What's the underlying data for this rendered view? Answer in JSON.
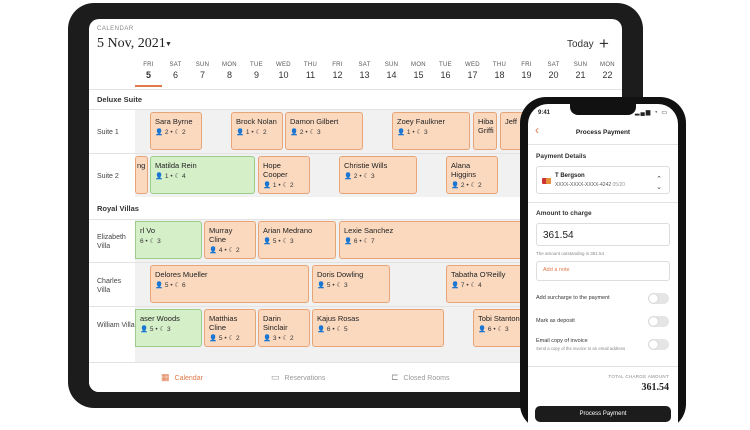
{
  "tablet": {
    "calendar_label": "CALENDAR",
    "date": "5 Nov, 2021",
    "today_label": "Today",
    "plus_icon": "+",
    "days": [
      {
        "dow": "FRI",
        "num": "5"
      },
      {
        "dow": "SAT",
        "num": "6"
      },
      {
        "dow": "SUN",
        "num": "7"
      },
      {
        "dow": "MON",
        "num": "8"
      },
      {
        "dow": "TUE",
        "num": "9"
      },
      {
        "dow": "WED",
        "num": "10"
      },
      {
        "dow": "THU",
        "num": "11"
      },
      {
        "dow": "FRI",
        "num": "12"
      },
      {
        "dow": "SAT",
        "num": "13"
      },
      {
        "dow": "SUN",
        "num": "14"
      },
      {
        "dow": "MON",
        "num": "15"
      },
      {
        "dow": "TUE",
        "num": "16"
      },
      {
        "dow": "WED",
        "num": "17"
      },
      {
        "dow": "THU",
        "num": "18"
      },
      {
        "dow": "FRI",
        "num": "19"
      },
      {
        "dow": "SAT",
        "num": "20"
      },
      {
        "dow": "SUN",
        "num": "21"
      },
      {
        "dow": "MON",
        "num": "22"
      }
    ],
    "sections": {
      "deluxe": "Deluxe Suite",
      "royal": "Royal Villas"
    },
    "rooms": {
      "suite1": "Suite 1",
      "suite2": "Suite 2",
      "elizabeth": "Elizabeth Villa",
      "charles": "Charles Villa",
      "william": "William Villa"
    },
    "reservations": [
      {
        "name": "Sara Byrne",
        "meta": "👤 2 • ☾ 2",
        "color": "orange"
      },
      {
        "name": "Brock Nolan",
        "meta": "👤 1 • ☾ 2",
        "color": "orange"
      },
      {
        "name": "Damon Gilbert",
        "meta": "👤 2 • ☾ 3",
        "color": "orange"
      },
      {
        "name": "Zoey Faulkner",
        "meta": "👤 1 • ☾ 3",
        "color": "orange"
      },
      {
        "name": "Hiba Griffi",
        "meta": "",
        "color": "orange"
      },
      {
        "name": "Jeff",
        "meta": "",
        "color": "orange"
      },
      {
        "name": "ng",
        "meta": "",
        "color": "orange"
      },
      {
        "name": "Matilda Rein",
        "meta": "👤 1 • ☾ 4",
        "color": "green"
      },
      {
        "name": "Hope Cooper",
        "meta": "👤 1 • ☾ 2",
        "color": "orange"
      },
      {
        "name": "Christie Wills",
        "meta": "👤 2 • ☾ 3",
        "color": "orange"
      },
      {
        "name": "Alana Higgins",
        "meta": "👤 2 • ☾ 2",
        "color": "orange"
      },
      {
        "name": "rl Vo",
        "meta": "6 • ☾ 3",
        "color": "green"
      },
      {
        "name": "Murray Cline",
        "meta": "👤 4 • ☾ 2",
        "color": "orange"
      },
      {
        "name": "Arian Medrano",
        "meta": "👤 5 • ☾ 3",
        "color": "orange"
      },
      {
        "name": "Lexie Sanchez",
        "meta": "👤 6 • ☾ 7",
        "color": "orange"
      },
      {
        "name": "Delores Mueller",
        "meta": "👤 5 • ☾ 6",
        "color": "orange"
      },
      {
        "name": "Doris Dowling",
        "meta": "👤 5 • ☾ 3",
        "color": "orange"
      },
      {
        "name": "Tabatha O'Reilly",
        "meta": "👤 7 • ☾ 4",
        "color": "orange"
      },
      {
        "name": "aser Woods",
        "meta": "👤 5 • ☾ 3",
        "color": "green"
      },
      {
        "name": "Matthias Cline",
        "meta": "👤 5 • ☾ 2",
        "color": "orange"
      },
      {
        "name": "Darin Sinclair",
        "meta": "👤 3 • ☾ 2",
        "color": "orange"
      },
      {
        "name": "Kajus Rosas",
        "meta": "👤 6 • ☾ 5",
        "color": "orange"
      },
      {
        "name": "Tobi Stanton",
        "meta": "👤 6 • ☾ 3",
        "color": "orange"
      }
    ],
    "nav": {
      "calendar": "Calendar",
      "reservations": "Reservations",
      "closed_rooms": "Closed Rooms"
    },
    "accent_color": "#e07a4a"
  },
  "phone": {
    "time": "9:41",
    "status_icons": "▂▄▆ ◔ ▭",
    "title": "Process Payment",
    "payment_details_label": "Payment Details",
    "card_holder": "T Bergson",
    "card_number": "XXXX-XXXX-XXXX-4242",
    "card_expiry": "05/20",
    "amount_label": "Amount to charge",
    "amount_value": "361.54",
    "amount_note": "The amount outstanding is 361.54",
    "add_note_label": "Add a note",
    "toggle_surcharge": "Add surcharge to the payment",
    "toggle_deposit": "Mark as deposit",
    "toggle_email": "Email copy of invoice",
    "toggle_email_sub": "Send a copy of the invoice to an email address",
    "total_label": "TOTAL CHARGE AMOUNT",
    "total_value": "361.54",
    "process_button": "Process Payment"
  }
}
